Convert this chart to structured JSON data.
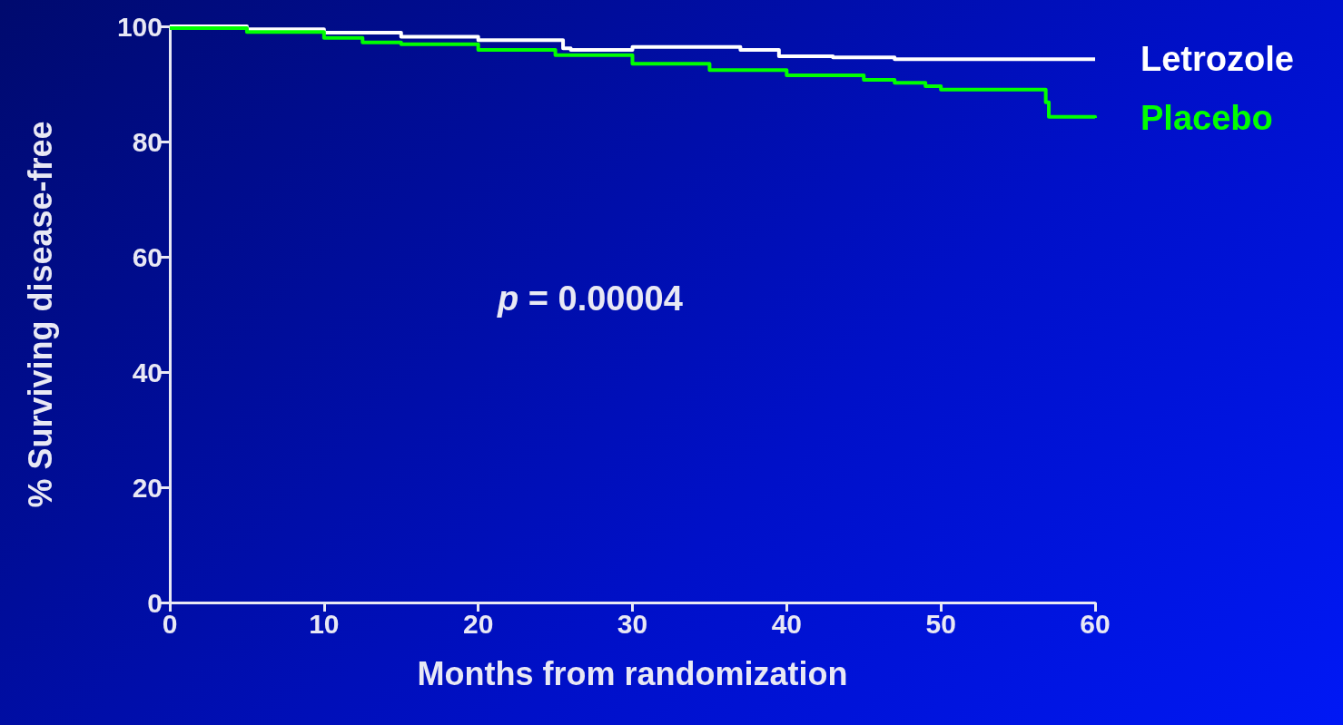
{
  "chart_data": {
    "type": "step",
    "xlabel": "Months from randomization",
    "ylabel": "% Surviving disease-free",
    "xlim": [
      0,
      60
    ],
    "xticks": [
      0,
      10,
      20,
      30,
      40,
      50,
      60
    ],
    "ylim": [
      0,
      100
    ],
    "yticks": [
      0,
      20,
      40,
      60,
      80,
      100
    ],
    "grid": false,
    "legend": false,
    "marker": "none",
    "line_style": "solid",
    "annotations": [
      "p = 0.00004"
    ],
    "series": [
      {
        "name": "Letrozole",
        "color": "#ffffff",
        "x": [
          0,
          5,
          10,
          15,
          20,
          25.5,
          26,
          30,
          37,
          39.5,
          43,
          47,
          60
        ],
        "values": [
          100,
          99.5,
          98.9,
          98.2,
          97.6,
          96.2,
          95.9,
          96.4,
          95.9,
          94.8,
          94.6,
          94.3,
          94.3
        ]
      },
      {
        "name": "Placebo",
        "color": "#00ff00",
        "x": [
          0,
          5,
          10,
          12.5,
          15,
          20,
          25,
          30,
          35,
          40,
          45,
          47,
          49,
          50,
          56.5,
          56.8,
          57,
          60
        ],
        "values": [
          99.7,
          99,
          98,
          97.2,
          96.9,
          95.9,
          95,
          93.5,
          92.4,
          91.5,
          90.7,
          90.2,
          89.6,
          89,
          89,
          86.8,
          84.3,
          84.1
        ]
      }
    ]
  }
}
